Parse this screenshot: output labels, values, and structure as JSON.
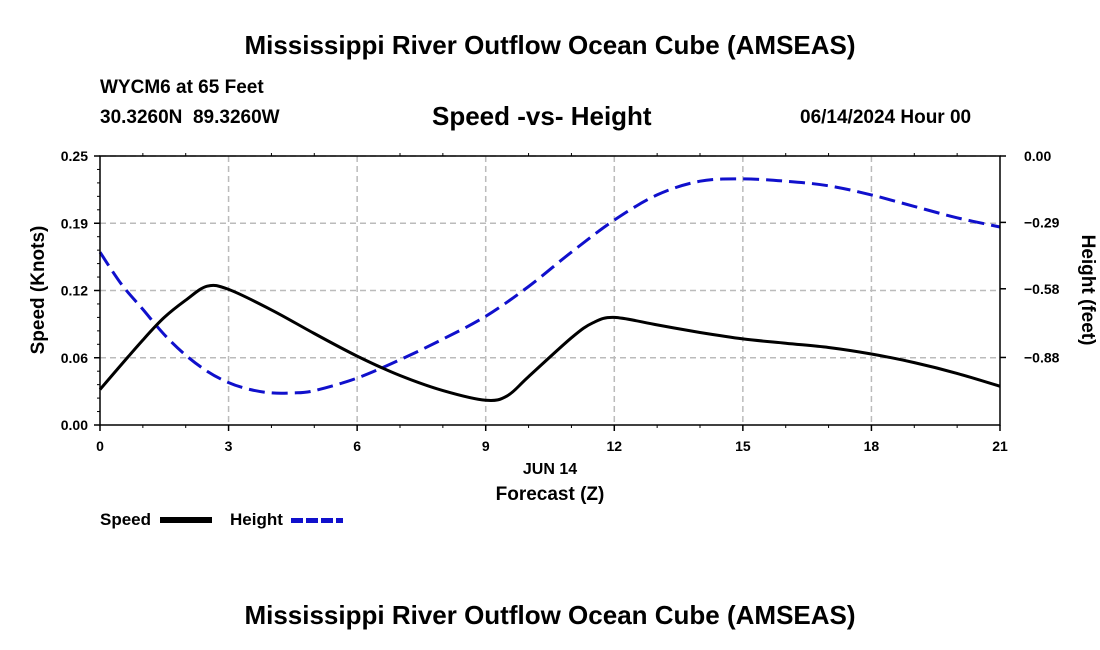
{
  "page": {
    "title_top": "Mississippi River Outflow Ocean Cube (AMSEAS)",
    "title_bottom": "Mississippi River Outflow Ocean Cube (AMSEAS)",
    "station": "WYCM6 at 65 Feet",
    "coords": "30.3260N  89.3260W",
    "date_label": "06/14/2024 Hour 00"
  },
  "legend": {
    "speed_label": "Speed",
    "height_label": "Height"
  },
  "colors": {
    "speed": "#000000",
    "height": "#1010cc",
    "grid": "#bbbbbb"
  },
  "chart_data": {
    "type": "line",
    "title": "Speed -vs- Height",
    "xlabel": "Forecast (Z)",
    "xlabel_date": "JUN 14",
    "ylabel": "Speed (Knots)",
    "y2label": "Height (feet)",
    "xlim": [
      0,
      21
    ],
    "ylim": [
      0,
      0.25
    ],
    "y2lim": [
      -1.175,
      0.0
    ],
    "x_ticks": [
      0,
      3,
      6,
      9,
      12,
      15,
      18,
      21
    ],
    "x_tick_labels": [
      "0",
      "3",
      "6",
      "9",
      "12",
      "15",
      "18",
      "21"
    ],
    "y_ticks": [
      0.0,
      0.0625,
      0.125,
      0.1875,
      0.25
    ],
    "y_tick_labels": [
      "0.00",
      "0.06",
      "0.12",
      "0.19",
      "0.25"
    ],
    "y2_ticks": [
      0.0,
      -0.29,
      -0.58,
      -0.88
    ],
    "y2_tick_labels": [
      "0.00",
      "−0.29",
      "−0.58",
      "−0.88"
    ],
    "grid": true,
    "series": [
      {
        "name": "Speed",
        "axis": "left",
        "style": "solid",
        "x": [
          0,
          1,
          1.5,
          2,
          2.5,
          3,
          4,
          5,
          6,
          7,
          8,
          9,
          9.5,
          10,
          11,
          11.5,
          12,
          13,
          14,
          15,
          16,
          17,
          18,
          19,
          20,
          21
        ],
        "values": [
          0.033,
          0.079,
          0.1,
          0.116,
          0.129,
          0.126,
          0.107,
          0.085,
          0.064,
          0.046,
          0.032,
          0.023,
          0.027,
          0.045,
          0.081,
          0.095,
          0.1,
          0.093,
          0.086,
          0.08,
          0.076,
          0.072,
          0.066,
          0.058,
          0.048,
          0.036
        ]
      },
      {
        "name": "Height",
        "axis": "right",
        "style": "dashed",
        "x": [
          0,
          0.5,
          1,
          1.5,
          2,
          2.5,
          3,
          3.5,
          4,
          4.5,
          5,
          6,
          7,
          8,
          9,
          10,
          11,
          12,
          13,
          14,
          15,
          16,
          17,
          18,
          19,
          20,
          21
        ],
        "values": [
          -0.42,
          -0.56,
          -0.67,
          -0.78,
          -0.87,
          -0.94,
          -0.99,
          -1.02,
          -1.035,
          -1.035,
          -1.025,
          -0.97,
          -0.89,
          -0.8,
          -0.7,
          -0.57,
          -0.42,
          -0.28,
          -0.17,
          -0.11,
          -0.1,
          -0.11,
          -0.13,
          -0.17,
          -0.22,
          -0.27,
          -0.31
        ]
      }
    ]
  }
}
